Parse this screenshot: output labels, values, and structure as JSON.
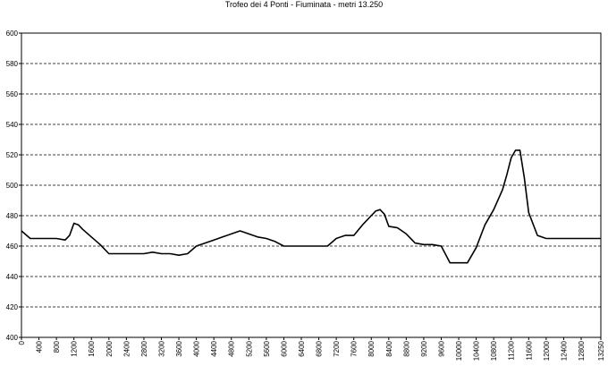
{
  "chart_data": {
    "type": "line",
    "title": "Trofeo dei 4 Ponti - Fiuminata - metri 13.250",
    "xlabel": "",
    "ylabel": "",
    "ylim": [
      400,
      600
    ],
    "xlim": [
      0,
      13250
    ],
    "grid": true,
    "legend": "none",
    "y_ticks": [
      "400",
      "420",
      "440",
      "460",
      "480",
      "500",
      "520",
      "540",
      "560",
      "580",
      "600"
    ],
    "x_ticks": [
      "0",
      "400",
      "800",
      "1200",
      "1600",
      "2000",
      "2400",
      "2800",
      "3200",
      "3600",
      "4000",
      "4400",
      "4800",
      "5200",
      "5600",
      "6000",
      "6400",
      "6800",
      "7200",
      "7600",
      "8000",
      "8400",
      "8800",
      "9200",
      "9600",
      "10000",
      "10400",
      "10800",
      "11200",
      "11600",
      "12000",
      "12400",
      "12800",
      "13250"
    ],
    "series": [
      {
        "color": "#000000",
        "x": [
          0,
          200,
          400,
          600,
          800,
          1000,
          1100,
          1200,
          1300,
          1400,
          1600,
          1800,
          2000,
          2200,
          2400,
          2800,
          3000,
          3200,
          3400,
          3600,
          3800,
          4000,
          4200,
          4400,
          4600,
          4800,
          5000,
          5200,
          5400,
          5600,
          5800,
          6000,
          6400,
          6800,
          7000,
          7200,
          7400,
          7600,
          7800,
          8000,
          8100,
          8200,
          8300,
          8400,
          8600,
          8800,
          9000,
          9200,
          9400,
          9600,
          9800,
          10000,
          10200,
          10400,
          10600,
          10800,
          11000,
          11100,
          11200,
          11300,
          11400,
          11500,
          11600,
          11800,
          12000,
          12400,
          12800,
          13250
        ],
        "values": [
          470,
          465,
          465,
          465,
          465,
          464,
          467,
          475,
          474,
          471,
          466,
          461,
          455,
          455,
          455,
          455,
          456,
          455,
          455,
          454,
          455,
          460,
          462,
          464,
          466,
          468,
          470,
          468,
          466,
          465,
          463,
          460,
          460,
          460,
          460,
          465,
          467,
          467,
          474,
          480,
          483,
          484,
          481,
          473,
          472,
          468,
          462,
          461,
          461,
          460,
          449,
          449,
          449,
          459,
          474,
          484,
          497,
          507,
          518,
          523,
          523,
          505,
          482,
          467,
          465,
          465,
          465,
          465
        ]
      }
    ]
  }
}
